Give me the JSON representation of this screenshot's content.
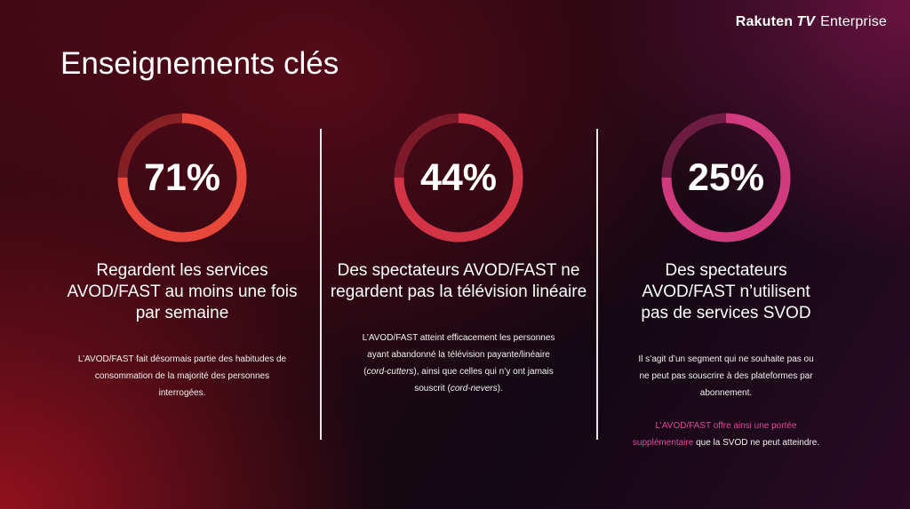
{
  "header": {
    "brand": "Rakuten",
    "brand_tv": "TV",
    "brand_suffix": "Enterprise"
  },
  "title": "Enseignements clés",
  "colors": {
    "ring_red": "#e8473b",
    "ring_crimson": "#d23445",
    "ring_magenta": "#d13a7d",
    "highlight": "#e04a98"
  },
  "stats": [
    {
      "percent": "71%",
      "ring_color": "#e8473b",
      "ring_icon": "progress-ring-icon",
      "headline": "Regardent les services AVOD/FAST au moins une fois par semaine",
      "body": "L’AVOD/FAST fait désormais partie des habitudes de consommation de la majorité des personnes interrogées."
    },
    {
      "percent": "44%",
      "ring_color": "#d23445",
      "ring_icon": "progress-ring-icon",
      "headline": "Des spectateurs AVOD/FAST ne regardent pas la télévision linéaire",
      "body_1": "L’AVOD/FAST atteint efficacement les personnes ayant abandonné la télévision payante/linéaire (",
      "body_em1": "cord-cutters",
      "body_2": "), ainsi que celles qui n’y ont jamais souscrit (",
      "body_em2": "cord-nevers",
      "body_3": ")."
    },
    {
      "percent": "25%",
      "ring_color": "#d13a7d",
      "ring_icon": "progress-ring-icon",
      "headline": "Des spectateurs AVOD/FAST n’utilisent pas de services SVOD",
      "body": "Il s’agit d’un segment qui ne souhaite pas ou ne peut pas souscrire à des plateformes par abonnement.",
      "extra_highlight": "L’AVOD/FAST offre ainsi une portée supplémentaire",
      "extra_rest": " que la SVOD ne peut atteindre."
    }
  ]
}
